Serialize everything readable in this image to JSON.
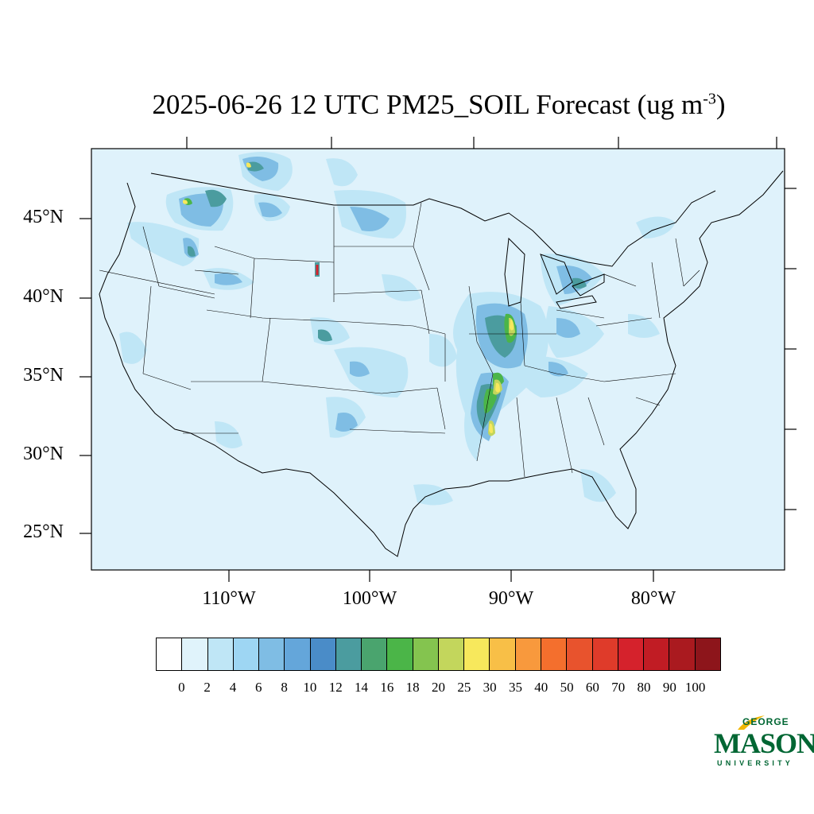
{
  "title": {
    "main": "2025-06-26 12 UTC PM25_SOIL Forecast (ug m",
    "sup": "-3",
    "close": ")"
  },
  "lat_labels": [
    "45°N",
    "40°N",
    "35°N",
    "30°N",
    "25°N"
  ],
  "lon_labels": [
    "110°W",
    "100°W",
    "90°W",
    "80°W"
  ],
  "colorbar": {
    "colors": [
      "#ffffff",
      "#e0f3fb",
      "#bfe6f6",
      "#9ed6f3",
      "#7fbde4",
      "#64a6da",
      "#4a8cc8",
      "#4b9c9f",
      "#4aa46e",
      "#4bb548",
      "#84c44f",
      "#c3d65c",
      "#f7e85c",
      "#f8bf47",
      "#f8993d",
      "#f46f2d",
      "#e8532d",
      "#df3b2a",
      "#d5222c",
      "#c11c24",
      "#aa1a1f",
      "#8d151b"
    ],
    "labels": [
      "0",
      "2",
      "4",
      "6",
      "8",
      "10",
      "12",
      "14",
      "16",
      "18",
      "20",
      "25",
      "30",
      "35",
      "40",
      "50",
      "60",
      "70",
      "80",
      "90",
      "100"
    ]
  },
  "logo": {
    "george": "GEORGE",
    "mason": "MASON",
    "university": "UNIVERSITY"
  },
  "colors": {
    "background_field": "#dff2fb",
    "low": "#bfe6f6",
    "mid": "#7fbde4",
    "teal": "#4b9c9f",
    "green": "#4aa46e",
    "yellow": "#f7e85c",
    "red": "#d5222c",
    "brand": "#006633",
    "brand_accent": "#f2b705"
  }
}
